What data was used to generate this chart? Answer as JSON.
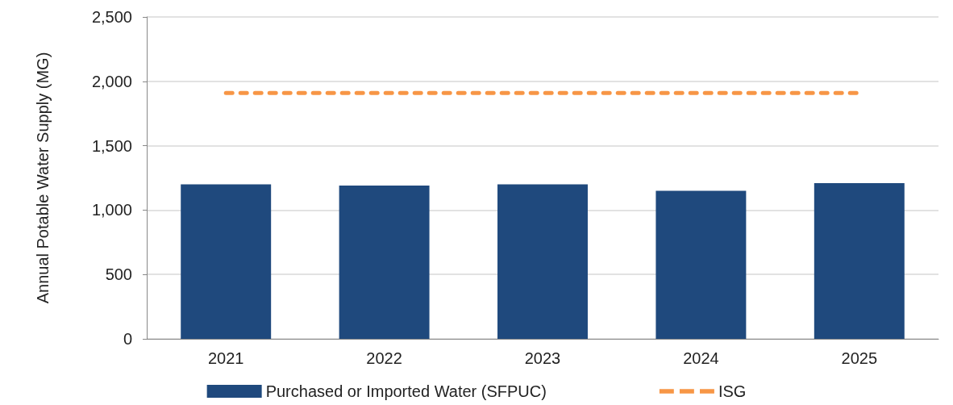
{
  "chart_data": {
    "type": "bar",
    "ylabel": "Annual Potable Water Supply (MG)",
    "categories": [
      "2021",
      "2022",
      "2023",
      "2024",
      "2025"
    ],
    "series": [
      {
        "name": "Purchased or Imported Water (SFPUC)",
        "color": "#1f497d",
        "values": [
          1200,
          1190,
          1200,
          1150,
          1210
        ]
      },
      {
        "name": "ISG",
        "type": "line",
        "color": "#f79646",
        "line_style": "dashed",
        "marker": "none",
        "values": [
          1910,
          1910,
          1910,
          1910,
          1910
        ]
      }
    ],
    "ylim": [
      0,
      2500
    ],
    "yticks": [
      0,
      500,
      {
        "value": 1000,
        "label": "1,000"
      },
      {
        "value": 1500,
        "label": "1,500"
      },
      {
        "value": 2000,
        "label": "2,000"
      },
      {
        "value": 2500,
        "label": "2,500"
      }
    ],
    "grid": "y",
    "legend": "bottom"
  }
}
